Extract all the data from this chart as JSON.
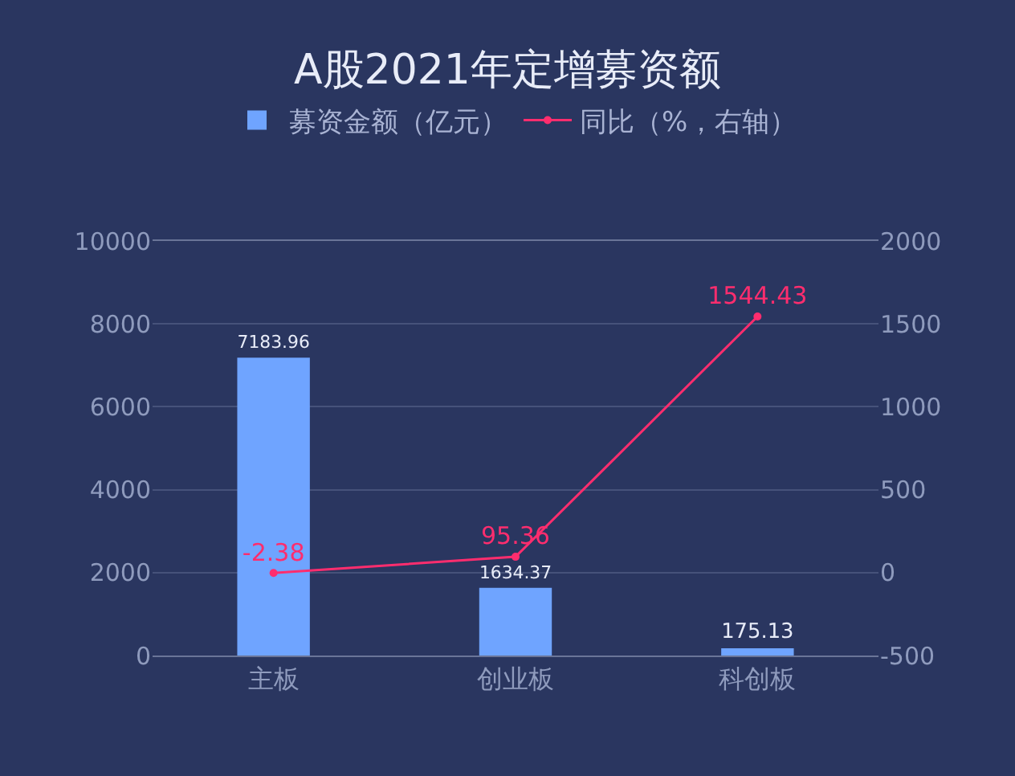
{
  "chart_data": {
    "type": "bar",
    "title": "A股2021年定增募资额",
    "categories": [
      "主板",
      "创业板",
      "科创板"
    ],
    "series": [
      {
        "name": "募资金额（亿元）",
        "color": "#6fa4ff",
        "values": [
          7183.96,
          1634.37,
          175.13
        ]
      },
      {
        "name": "同比（%，右轴）",
        "type": "line",
        "axis": "y2",
        "color": "#ff2d6e",
        "marker": "circle",
        "values": [
          -2.38,
          95.36,
          1544.43
        ]
      }
    ],
    "ylim": [
      0,
      10000
    ],
    "yticks": [
      0,
      2000,
      4000,
      6000,
      8000,
      10000
    ],
    "y2lim": [
      -500,
      2000
    ],
    "y2ticks": [
      -500,
      0,
      500,
      1000,
      1500,
      2000
    ],
    "grid": "y",
    "legend": "top",
    "data_labels": true
  }
}
